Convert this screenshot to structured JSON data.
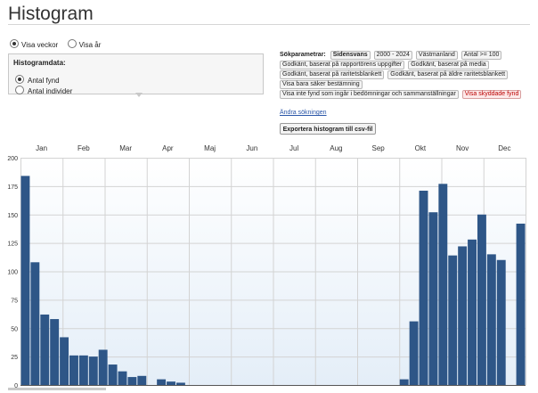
{
  "page": {
    "title": "Histogram"
  },
  "mode": {
    "options": [
      {
        "label": "Visa veckor",
        "selected": true
      },
      {
        "label": "Visa år",
        "selected": false
      }
    ]
  },
  "histogram_panel": {
    "title": "Histogramdata:",
    "options": [
      {
        "label": "Antal fynd",
        "selected": true
      },
      {
        "label": "Antal individer",
        "selected": false
      }
    ]
  },
  "search": {
    "label": "Sökparametrar:",
    "chips": [
      {
        "text": "Sidensvans",
        "bold": true,
        "warning": false
      },
      {
        "text": "2000 - 2024",
        "bold": false,
        "warning": false
      },
      {
        "text": "Västmanland",
        "bold": false,
        "warning": false
      },
      {
        "text": "Antal >= 100",
        "bold": false,
        "warning": false
      },
      {
        "text": "Godkänt, baserat på rapportörens uppgifter",
        "bold": false,
        "warning": false
      },
      {
        "text": "Godkänt, baserat på media",
        "bold": false,
        "warning": false
      },
      {
        "text": "Godkänt, baserat på raritetsblankett",
        "bold": false,
        "warning": false
      },
      {
        "text": "Godkänt, baserat på äldre raritetsblankett",
        "bold": false,
        "warning": false
      },
      {
        "text": "Visa bara säker bestämning",
        "bold": false,
        "warning": false
      },
      {
        "text": "Visa inte fynd som ingår i bedömningar och sammanställningar",
        "bold": false,
        "warning": false
      },
      {
        "text": "Visa skyddade fynd",
        "bold": false,
        "warning": true
      }
    ],
    "change_link": "Ändra sökningen",
    "export_label": "Exportera histogram till csv-fil"
  },
  "colors": {
    "bar": "#2e5687",
    "plot_bg_top": "#ffffff",
    "plot_bg_bottom": "#e4eef8",
    "grid": "#d3d3d3",
    "warning_chip": "#b00000"
  },
  "chart_data": {
    "type": "bar",
    "x_unit": "week",
    "weeks": [
      1,
      2,
      3,
      4,
      5,
      6,
      7,
      8,
      9,
      10,
      11,
      12,
      13,
      14,
      15,
      16,
      17,
      18,
      19,
      20,
      21,
      22,
      23,
      24,
      25,
      26,
      27,
      28,
      29,
      30,
      31,
      32,
      33,
      34,
      35,
      36,
      37,
      38,
      39,
      40,
      41,
      42,
      43,
      44,
      45,
      46,
      47,
      48,
      49,
      50,
      51,
      52
    ],
    "values": [
      184,
      108,
      62,
      58,
      42,
      26,
      26,
      25,
      31,
      18,
      12,
      7,
      8,
      0,
      5,
      3,
      2,
      0,
      0,
      0,
      0,
      0,
      0,
      0,
      0,
      0,
      0,
      0,
      0,
      0,
      0,
      0,
      0,
      0,
      0,
      0,
      0,
      0,
      0,
      5,
      56,
      171,
      152,
      177,
      114,
      122,
      128,
      150,
      115,
      110,
      0,
      142
    ],
    "month_labels": [
      "Jan",
      "Feb",
      "Mar",
      "Apr",
      "Maj",
      "Jun",
      "Jul",
      "Aug",
      "Sep",
      "Okt",
      "Nov",
      "Dec"
    ],
    "y_ticks": [
      0,
      25,
      50,
      75,
      100,
      125,
      150,
      175,
      200
    ],
    "ylim": [
      0,
      200
    ],
    "grid": true,
    "title": "",
    "xlabel": "",
    "ylabel": ""
  }
}
